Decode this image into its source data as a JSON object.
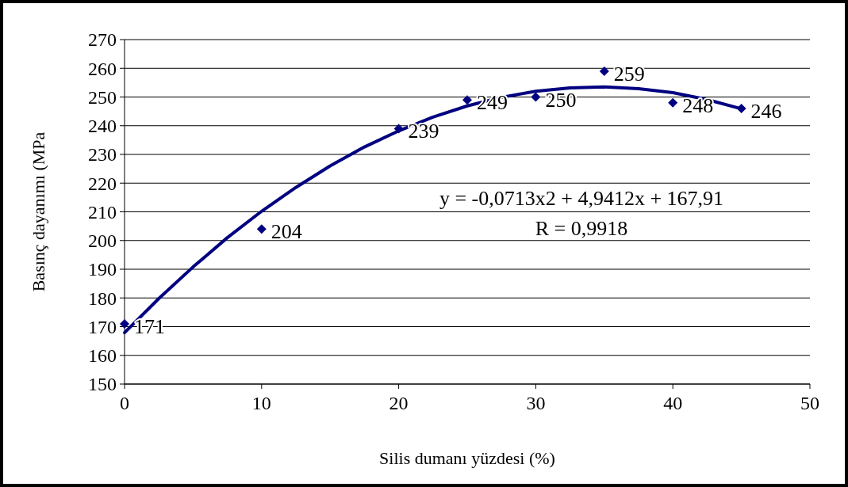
{
  "chart_data": {
    "type": "line",
    "xlabel": "Silis dumanı yüzdesi (%)",
    "ylabel": "Basınç dayanımı (MPa",
    "xlim": [
      0,
      50
    ],
    "xticks": [
      0,
      10,
      20,
      30,
      40,
      50
    ],
    "ylim": [
      150,
      270
    ],
    "yticks": [
      150,
      160,
      170,
      180,
      190,
      200,
      210,
      220,
      230,
      240,
      250,
      260,
      270
    ],
    "grid": "y",
    "series": [
      {
        "color": "#000080",
        "x": [
          0,
          2.5,
          5,
          7.5,
          10,
          12.5,
          15,
          17.5,
          20,
          22.5,
          25,
          27.5,
          30,
          32.5,
          35,
          37.5,
          40,
          42.5,
          45
        ],
        "values": [
          167.9,
          179.8,
          190.8,
          201.0,
          210.2,
          218.5,
          226.0,
          232.6,
          238.2,
          243.0,
          246.9,
          249.9,
          252.0,
          253.2,
          253.5,
          252.9,
          251.5,
          249.1,
          245.9
        ]
      },
      {
        "type": "scatter",
        "color": "#000080",
        "marker": "diamond",
        "x": [
          0,
          10,
          20,
          25,
          30,
          35,
          40,
          45
        ],
        "values": [
          171,
          204,
          239,
          249,
          250,
          259,
          248,
          246
        ],
        "value_labels": [
          "171",
          "204",
          "239",
          "249",
          "250",
          "259",
          "248",
          "246"
        ]
      }
    ],
    "annotations": [
      "y = -0,0713x2 + 4,9412x + 167,91",
      "R = 0,9918"
    ]
  }
}
